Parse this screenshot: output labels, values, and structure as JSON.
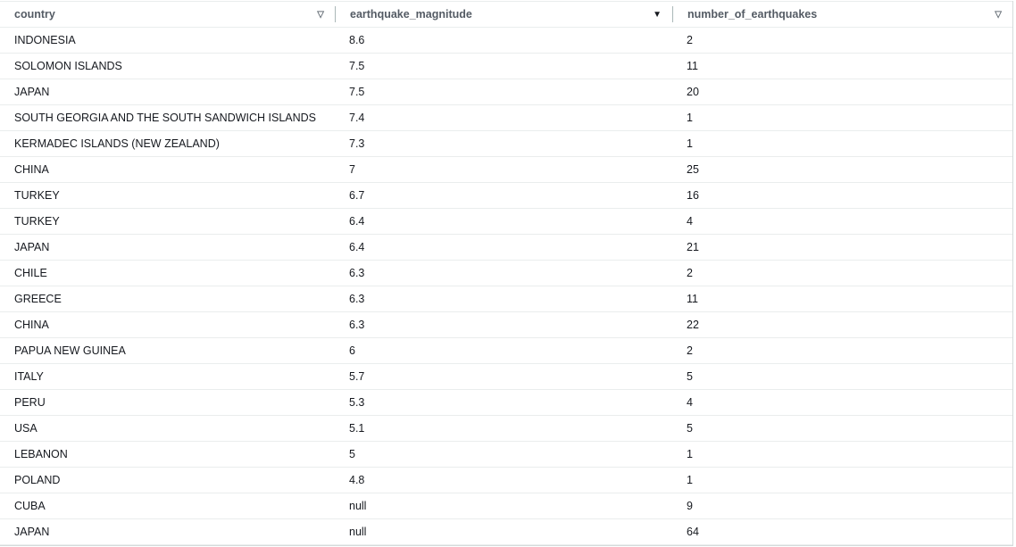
{
  "columns": [
    {
      "label": "country",
      "sort_icon": "sort-triangle-outline-icon"
    },
    {
      "label": "earthquake_magnitude",
      "sort_icon": "sort-triangle-filled-icon"
    },
    {
      "label": "number_of_earthquakes",
      "sort_icon": "sort-triangle-outline-icon"
    }
  ],
  "rows": [
    [
      "INDONESIA",
      "8.6",
      "2"
    ],
    [
      "SOLOMON ISLANDS",
      "7.5",
      "11"
    ],
    [
      "JAPAN",
      "7.5",
      "20"
    ],
    [
      "SOUTH GEORGIA AND THE SOUTH SANDWICH ISLANDS",
      "7.4",
      "1"
    ],
    [
      "KERMADEC ISLANDS (NEW ZEALAND)",
      "7.3",
      "1"
    ],
    [
      "CHINA",
      "7",
      "25"
    ],
    [
      "TURKEY",
      "6.7",
      "16"
    ],
    [
      "TURKEY",
      "6.4",
      "4"
    ],
    [
      "JAPAN",
      "6.4",
      "21"
    ],
    [
      "CHILE",
      "6.3",
      "2"
    ],
    [
      "GREECE",
      "6.3",
      "11"
    ],
    [
      "CHINA",
      "6.3",
      "22"
    ],
    [
      "PAPUA NEW GUINEA",
      "6",
      "2"
    ],
    [
      "ITALY",
      "5.7",
      "5"
    ],
    [
      "PERU",
      "5.3",
      "4"
    ],
    [
      "USA",
      "5.1",
      "5"
    ],
    [
      "LEBANON",
      "5",
      "1"
    ],
    [
      "POLAND",
      "4.8",
      "1"
    ],
    [
      "CUBA",
      "null",
      "9"
    ],
    [
      "JAPAN",
      "null",
      "64"
    ]
  ]
}
